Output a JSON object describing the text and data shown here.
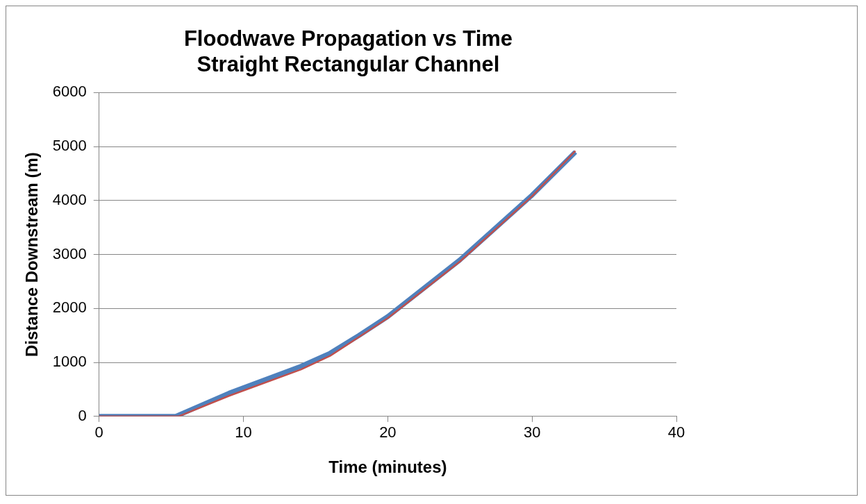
{
  "chart_data": {
    "type": "line",
    "title": [
      "Floodwave Propagation vs Time",
      "Straight Rectangular Channel"
    ],
    "xlabel": "Time (minutes)",
    "ylabel": "Distance Downstream (m)",
    "xlim": [
      0,
      40
    ],
    "xticks": [
      0,
      10,
      20,
      30,
      40
    ],
    "ylim": [
      0,
      6000
    ],
    "yticks": [
      0,
      1000,
      2000,
      3000,
      4000,
      5000,
      6000
    ],
    "grid": "y",
    "marker": "none",
    "line_style": "solid",
    "legend": false,
    "series": [
      {
        "color": "#4f81bd",
        "x": [
          0,
          5.3,
          9,
          14,
          16,
          18,
          20,
          25,
          30,
          33
        ],
        "values": [
          0,
          0,
          430,
          930,
          1170,
          1500,
          1850,
          2900,
          4100,
          4900
        ]
      },
      {
        "color": "#c0504d",
        "x": [
          0,
          5.5,
          9,
          14,
          16,
          18,
          20,
          25,
          30,
          33
        ],
        "values": [
          0,
          0,
          380,
          870,
          1120,
          1470,
          1820,
          2870,
          4080,
          4920
        ]
      }
    ]
  }
}
